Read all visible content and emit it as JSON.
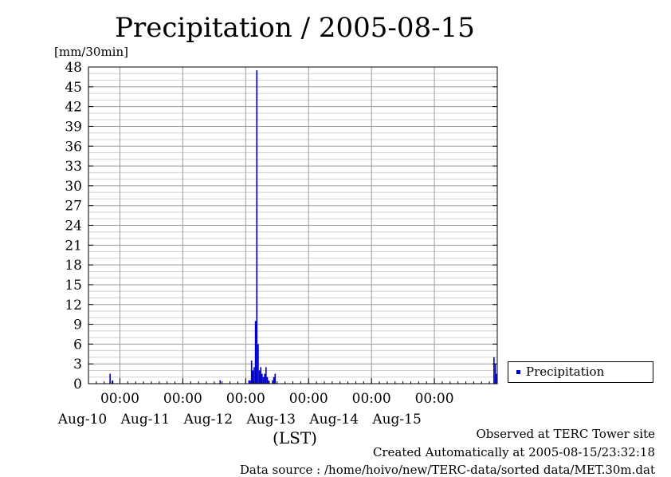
{
  "chart_data": {
    "type": "bar",
    "title": "Precipitation / 2005-08-15",
    "ylabel": "[mm/30min]",
    "xlabel": "(LST)",
    "ylim": [
      0,
      48
    ],
    "xlim": [
      "2005-08-09 12:00",
      "2005-08-15 24:00"
    ],
    "yticks": [
      "0",
      "3",
      "6",
      "9",
      "12",
      "15",
      "18",
      "21",
      "24",
      "27",
      "30",
      "33",
      "36",
      "39",
      "42",
      "45",
      "48"
    ],
    "xticks": [
      {
        "time": "2005-08-10 00:00",
        "label": "00:00",
        "date": "Aug-10"
      },
      {
        "time": "2005-08-11 00:00",
        "label": "00:00",
        "date": "Aug-11"
      },
      {
        "time": "2005-08-12 00:00",
        "label": "00:00",
        "date": "Aug-12"
      },
      {
        "time": "2005-08-13 00:00",
        "label": "00:00",
        "date": "Aug-13"
      },
      {
        "time": "2005-08-14 00:00",
        "label": "00:00",
        "date": "Aug-14"
      },
      {
        "time": "2005-08-15 00:00",
        "label": "00:00",
        "date": "Aug-15"
      }
    ],
    "grid": true,
    "legend_position": "right",
    "series": [
      {
        "name": "Precipitation",
        "color": "#0000cc",
        "points": [
          {
            "t": "2005-08-09 20:00",
            "v": 1.5
          },
          {
            "t": "2005-08-09 21:00",
            "v": 0.5
          },
          {
            "t": "2005-08-11 14:00",
            "v": 0.5
          },
          {
            "t": "2005-08-12 01:00",
            "v": 0.5
          },
          {
            "t": "2005-08-12 01:30",
            "v": 0.5
          },
          {
            "t": "2005-08-12 02:00",
            "v": 3.5
          },
          {
            "t": "2005-08-12 02:30",
            "v": 2.0
          },
          {
            "t": "2005-08-12 03:00",
            "v": 2.5
          },
          {
            "t": "2005-08-12 03:30",
            "v": 9.5
          },
          {
            "t": "2005-08-12 04:00",
            "v": 47.5
          },
          {
            "t": "2005-08-12 04:30",
            "v": 6.0
          },
          {
            "t": "2005-08-12 05:00",
            "v": 2.0
          },
          {
            "t": "2005-08-12 05:30",
            "v": 2.5
          },
          {
            "t": "2005-08-12 06:00",
            "v": 1.5
          },
          {
            "t": "2005-08-12 06:30",
            "v": 1.0
          },
          {
            "t": "2005-08-12 07:00",
            "v": 1.5
          },
          {
            "t": "2005-08-12 07:30",
            "v": 2.5
          },
          {
            "t": "2005-08-12 08:00",
            "v": 1.0
          },
          {
            "t": "2005-08-12 08:30",
            "v": 0.5
          },
          {
            "t": "2005-08-12 10:00",
            "v": 0.5
          },
          {
            "t": "2005-08-12 10:30",
            "v": 1.0
          },
          {
            "t": "2005-08-12 11:00",
            "v": 1.5
          },
          {
            "t": "2005-08-15 22:30",
            "v": 4.0
          },
          {
            "t": "2005-08-15 23:00",
            "v": 3.0
          },
          {
            "t": "2005-08-15 23:30",
            "v": 1.5
          }
        ]
      }
    ]
  },
  "footer": {
    "line1": "Observed at TERC Tower site",
    "line2": "Created Automatically at 2005-08-15/23:32:18",
    "line3": "Data source : /home/hoivo/new/TERC-data/sorted  data/MET.30m.dat"
  }
}
